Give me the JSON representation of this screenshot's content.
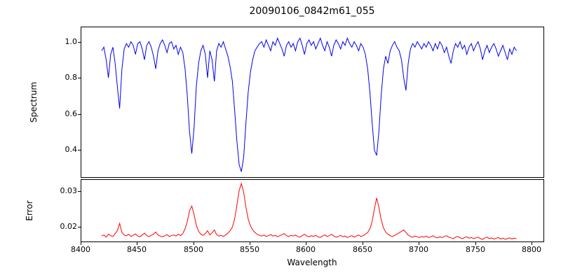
{
  "chart_data": {
    "type": "line",
    "title": "20090106_0842m61_055",
    "xlabel": "Wavelength",
    "xlim": [
      8400,
      8810
    ],
    "xticks": [
      8400,
      8450,
      8500,
      8550,
      8600,
      8650,
      8700,
      8750,
      8800
    ],
    "xticklabels": [
      "8400",
      "8450",
      "8500",
      "8550",
      "8600",
      "8650",
      "8700",
      "8750",
      "8800"
    ],
    "grid": false,
    "legend": "none",
    "x": [
      8418,
      8420,
      8422,
      8424,
      8426,
      8428,
      8430,
      8432,
      8434,
      8436,
      8438,
      8440,
      8442,
      8444,
      8446,
      8448,
      8450,
      8452,
      8454,
      8456,
      8458,
      8460,
      8462,
      8464,
      8466,
      8468,
      8470,
      8472,
      8474,
      8476,
      8478,
      8480,
      8482,
      8484,
      8486,
      8488,
      8490,
      8492,
      8494,
      8496,
      8498,
      8500,
      8502,
      8504,
      8506,
      8508,
      8510,
      8512,
      8514,
      8516,
      8518,
      8520,
      8522,
      8524,
      8526,
      8528,
      8530,
      8532,
      8534,
      8536,
      8538,
      8540,
      8542,
      8544,
      8546,
      8548,
      8550,
      8552,
      8554,
      8556,
      8558,
      8560,
      8562,
      8564,
      8566,
      8568,
      8570,
      8572,
      8574,
      8576,
      8578,
      8580,
      8582,
      8584,
      8586,
      8588,
      8590,
      8592,
      8594,
      8596,
      8598,
      8600,
      8602,
      8604,
      8606,
      8608,
      8610,
      8612,
      8614,
      8616,
      8618,
      8620,
      8622,
      8624,
      8626,
      8628,
      8630,
      8632,
      8634,
      8636,
      8638,
      8640,
      8642,
      8644,
      8646,
      8648,
      8650,
      8652,
      8654,
      8656,
      8658,
      8660,
      8662,
      8664,
      8666,
      8668,
      8670,
      8672,
      8674,
      8676,
      8678,
      8680,
      8682,
      8684,
      8686,
      8688,
      8690,
      8692,
      8694,
      8696,
      8698,
      8700,
      8702,
      8704,
      8706,
      8708,
      8710,
      8712,
      8714,
      8716,
      8718,
      8720,
      8722,
      8724,
      8726,
      8728,
      8730,
      8732,
      8734,
      8736,
      8738,
      8740,
      8742,
      8744,
      8746,
      8748,
      8750,
      8752,
      8754,
      8756,
      8758,
      8760,
      8762,
      8764,
      8766,
      8768,
      8770,
      8772,
      8774,
      8776,
      8778,
      8780,
      8782,
      8784,
      8786
    ],
    "panels": [
      {
        "name": "spectrum",
        "ylabel": "Spectrum",
        "color": "#0000ee",
        "ylim": [
          0.25,
          1.08
        ],
        "yticks": [
          0.4,
          0.6,
          0.8,
          1.0
        ],
        "yticklabels": [
          "0.4",
          "0.6",
          "0.8",
          "1.0"
        ],
        "absorption_lines_x": [
          8498,
          8542,
          8662
        ],
        "values": [
          0.95,
          0.97,
          0.9,
          0.8,
          0.93,
          0.97,
          0.88,
          0.75,
          0.63,
          0.85,
          0.96,
          0.99,
          0.97,
          1.0,
          0.98,
          0.93,
          0.99,
          1.0,
          0.96,
          0.9,
          0.98,
          1.0,
          0.97,
          0.92,
          0.85,
          0.95,
          0.99,
          1.01,
          0.98,
          0.94,
          0.99,
          1.0,
          0.96,
          0.98,
          0.93,
          0.97,
          0.94,
          0.85,
          0.7,
          0.5,
          0.38,
          0.52,
          0.75,
          0.88,
          0.95,
          0.98,
          0.93,
          0.8,
          0.95,
          0.9,
          0.78,
          0.95,
          0.99,
          0.97,
          1.0,
          0.96,
          0.92,
          0.86,
          0.78,
          0.62,
          0.45,
          0.32,
          0.28,
          0.36,
          0.55,
          0.72,
          0.83,
          0.9,
          0.95,
          0.97,
          0.99,
          1.0,
          0.97,
          1.01,
          0.98,
          0.95,
          1.0,
          0.98,
          1.02,
          0.99,
          0.96,
          0.92,
          0.98,
          1.0,
          0.97,
          0.99,
          0.95,
          1.0,
          1.02,
          0.98,
          0.93,
          0.99,
          1.01,
          0.98,
          1.0,
          0.96,
          0.99,
          1.02,
          0.98,
          0.95,
          1.0,
          0.97,
          0.92,
          0.98,
          1.01,
          0.99,
          0.96,
          1.0,
          0.98,
          1.02,
          0.99,
          0.97,
          1.0,
          0.98,
          0.95,
          0.99,
          0.97,
          0.93,
          0.85,
          0.72,
          0.55,
          0.4,
          0.37,
          0.5,
          0.7,
          0.85,
          0.92,
          0.88,
          0.95,
          0.98,
          1.0,
          0.97,
          0.95,
          0.9,
          0.8,
          0.73,
          0.88,
          0.96,
          0.99,
          0.97,
          1.0,
          0.98,
          0.96,
          0.99,
          0.97,
          1.0,
          0.98,
          0.95,
          0.99,
          0.96,
          1.0,
          0.98,
          0.94,
          0.97,
          0.92,
          0.88,
          0.95,
          0.99,
          0.97,
          1.0,
          0.96,
          0.98,
          0.93,
          0.97,
          0.99,
          0.95,
          0.98,
          1.0,
          0.96,
          0.9,
          0.95,
          0.98,
          0.94,
          0.97,
          0.99,
          0.96,
          0.92,
          0.95,
          0.98,
          0.94,
          0.9,
          0.96,
          0.93,
          0.97,
          0.95
        ]
      },
      {
        "name": "error",
        "ylabel": "Error",
        "color": "#ff0000",
        "ylim": [
          0.016,
          0.033
        ],
        "yticks": [
          0.02,
          0.03
        ],
        "yticklabels": [
          "0.02",
          "0.03"
        ],
        "values": [
          0.0175,
          0.0178,
          0.0172,
          0.018,
          0.0176,
          0.0174,
          0.0182,
          0.019,
          0.021,
          0.0185,
          0.0178,
          0.0176,
          0.018,
          0.0174,
          0.0177,
          0.0181,
          0.0175,
          0.0173,
          0.0178,
          0.0183,
          0.0176,
          0.0174,
          0.0177,
          0.018,
          0.0186,
          0.0178,
          0.0175,
          0.0173,
          0.0176,
          0.0179,
          0.0174,
          0.0176,
          0.0178,
          0.0175,
          0.018,
          0.0176,
          0.0182,
          0.0195,
          0.0215,
          0.0245,
          0.0258,
          0.0235,
          0.0205,
          0.0188,
          0.018,
          0.0177,
          0.0182,
          0.019,
          0.0178,
          0.0184,
          0.0192,
          0.0179,
          0.0175,
          0.0177,
          0.0174,
          0.0178,
          0.0183,
          0.019,
          0.02,
          0.0222,
          0.026,
          0.03,
          0.032,
          0.0295,
          0.0255,
          0.0222,
          0.0203,
          0.0192,
          0.0185,
          0.018,
          0.0177,
          0.0175,
          0.0178,
          0.0174,
          0.0176,
          0.0179,
          0.0175,
          0.0177,
          0.0173,
          0.0176,
          0.0179,
          0.0182,
          0.0176,
          0.0174,
          0.0177,
          0.0175,
          0.0178,
          0.0174,
          0.0172,
          0.0176,
          0.018,
          0.0175,
          0.0173,
          0.0176,
          0.0174,
          0.0177,
          0.0173,
          0.0171,
          0.0175,
          0.0178,
          0.0174,
          0.0176,
          0.018,
          0.0175,
          0.0172,
          0.0174,
          0.0177,
          0.0173,
          0.0175,
          0.0171,
          0.0174,
          0.0176,
          0.0172,
          0.0175,
          0.0178,
          0.0174,
          0.0176,
          0.018,
          0.0185,
          0.0195,
          0.0215,
          0.025,
          0.028,
          0.0255,
          0.022,
          0.0198,
          0.0186,
          0.018,
          0.0176,
          0.0174,
          0.0177,
          0.018,
          0.0184,
          0.0188,
          0.0192,
          0.0185,
          0.0178,
          0.0174,
          0.0172,
          0.0175,
          0.0173,
          0.0171,
          0.0174,
          0.0172,
          0.0175,
          0.0171,
          0.0173,
          0.0176,
          0.0172,
          0.017,
          0.0173,
          0.0171,
          0.0174,
          0.0176,
          0.0172,
          0.017,
          0.0168,
          0.0172,
          0.0174,
          0.017,
          0.0168,
          0.0171,
          0.0173,
          0.0169,
          0.0171,
          0.0168,
          0.017,
          0.0172,
          0.0168,
          0.0166,
          0.017,
          0.0172,
          0.0168,
          0.017,
          0.0167,
          0.0169,
          0.0171,
          0.0167,
          0.0169,
          0.0166,
          0.0168,
          0.017,
          0.0167,
          0.0169,
          0.0168
        ]
      }
    ]
  }
}
